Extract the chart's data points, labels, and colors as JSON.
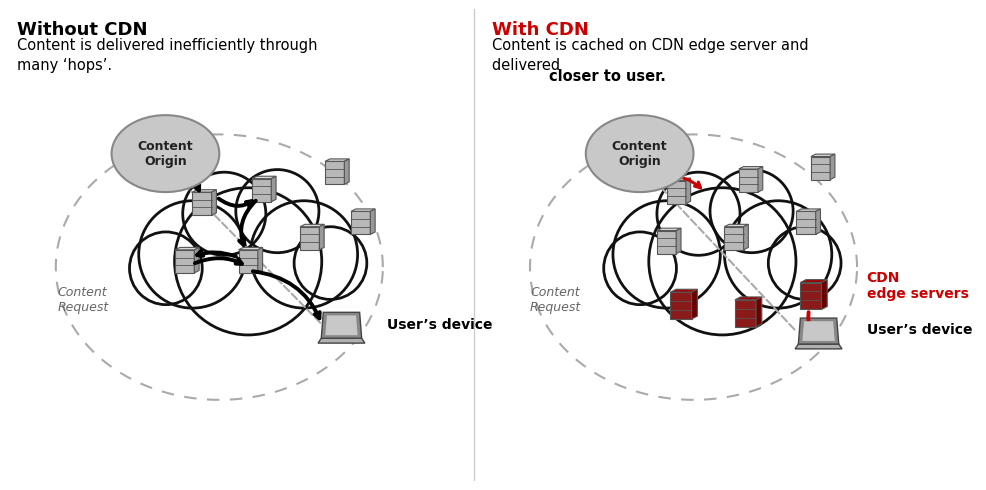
{
  "bg_color": "#ffffff",
  "left_title_bold": "Without CDN",
  "left_subtitle": "Content is delivered inefficiently through\nmany ‘hops’.",
  "right_title_bold": "With CDN",
  "right_subtitle_normal": "Content is cached on CDN edge server and\ndelivered ",
  "right_subtitle_bold": "closer to user.",
  "title_color_left": "#000000",
  "title_color_right": "#cc0000",
  "subtitle_color": "#000000",
  "origin_text": "Content\nOrigin",
  "arrow_color_left": "#000000",
  "arrow_color_right": "#cc0000",
  "dashed_circle_color": "#aaaaaa",
  "content_request_text": "Content\nRequest",
  "users_device_text": "User’s device",
  "cdn_edge_label": "CDN\nedge servers",
  "server_gray_face": "#b8b8b8",
  "server_gray_top": "#d8d8d8",
  "server_gray_side": "#999999",
  "server_red_face": "#8b1a1a",
  "server_red_top": "#a00000",
  "server_red_side": "#6b0000",
  "server_edge": "#555555",
  "cloud_edge": "#111111",
  "cloud_face": "#ffffff",
  "origin_face": "#c8c8c8",
  "origin_edge": "#888888",
  "laptop_screen": "#888888",
  "laptop_base": "#b0b0b0",
  "laptop_inner": "#c8c8c8",
  "laptop_edge": "#444444",
  "divider_color": "#cccccc"
}
